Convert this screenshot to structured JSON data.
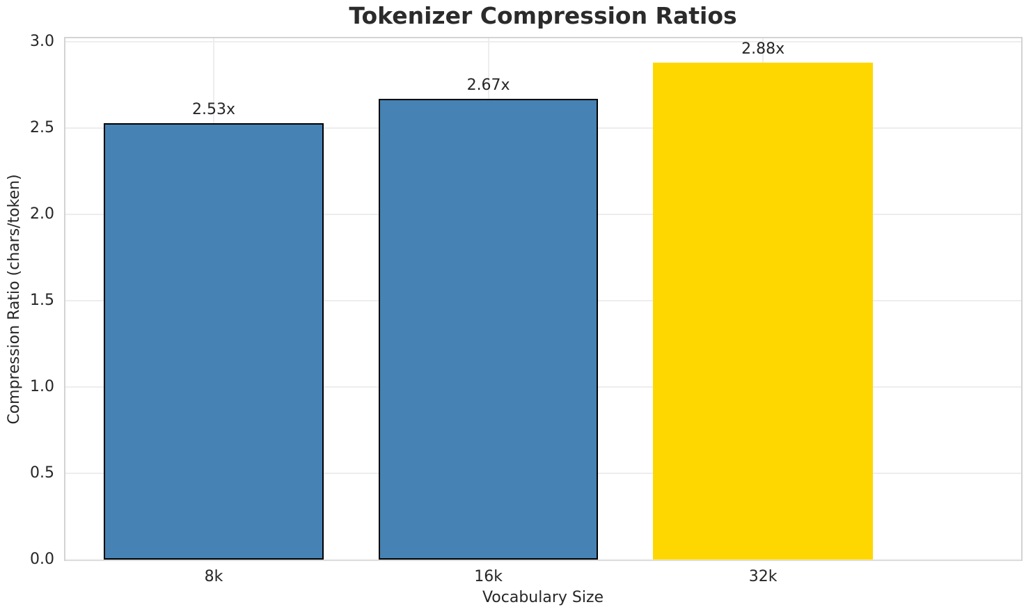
{
  "chart_data": {
    "type": "bar",
    "title": "Tokenizer Compression Ratios",
    "xlabel": "Vocabulary Size",
    "ylabel": "Compression Ratio (chars/token)",
    "categories": [
      "8k",
      "16k",
      "32k"
    ],
    "values": [
      2.53,
      2.67,
      2.88
    ],
    "bar_labels": [
      "2.53x",
      "2.67x",
      "2.88x"
    ],
    "bar_colors": [
      "#4682b4",
      "#4682b4",
      "#ffd700"
    ],
    "bar_edge_colors": [
      "#000000",
      "#000000",
      "none"
    ],
    "ytick_labels": [
      "0.0",
      "0.5",
      "1.0",
      "1.5",
      "2.0",
      "2.5",
      "3.0"
    ],
    "ytick_values": [
      0,
      0.5,
      1,
      1.5,
      2,
      2.5,
      3
    ],
    "ylim": [
      0,
      3.02
    ],
    "bar_width_fraction": 0.8,
    "grid": true,
    "legend": "none",
    "colors": {
      "background": "#ffffff",
      "grid_line": "#ededed",
      "spine": "#d3d3d3",
      "text": "#262626",
      "highlight": "#ffd700",
      "default_bar": "#4682b4"
    }
  }
}
